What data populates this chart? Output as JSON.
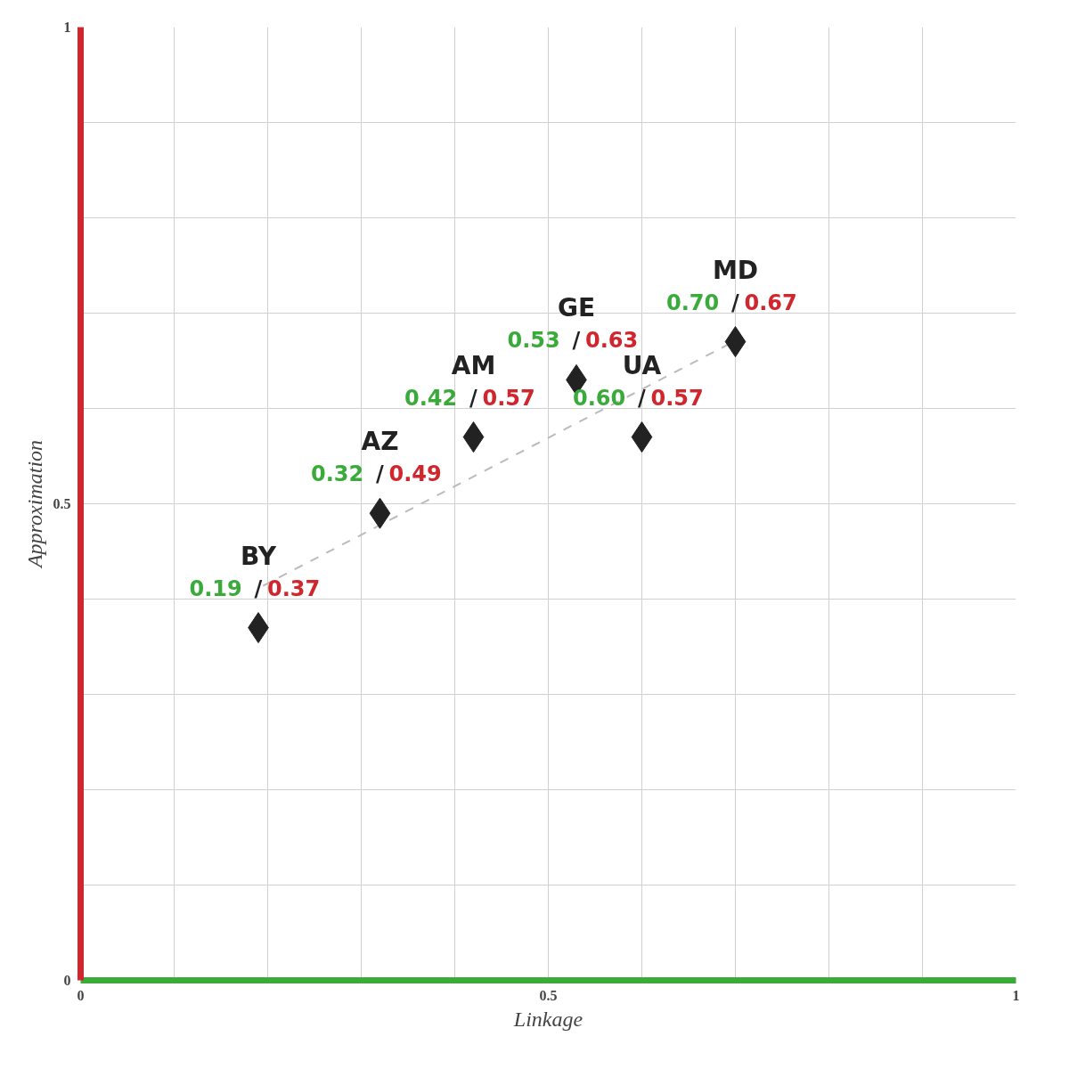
{
  "chart_data": {
    "type": "scatter",
    "xlabel": "Linkage",
    "ylabel": "Approximation",
    "xlim": [
      0,
      1
    ],
    "ylim": [
      0,
      1
    ],
    "xticks": [
      0,
      {
        "value": 0.1,
        "label": null
      },
      {
        "value": 0.2,
        "label": null
      },
      {
        "value": 0.3,
        "label": null
      },
      {
        "value": 0.4,
        "label": null
      },
      0.5,
      {
        "value": 0.6,
        "label": null
      },
      {
        "value": 0.7,
        "label": null
      },
      {
        "value": 0.8,
        "label": null
      },
      {
        "value": 0.9,
        "label": null
      },
      1
    ],
    "yticks": [
      0,
      {
        "value": 0.1,
        "label": null
      },
      {
        "value": 0.2,
        "label": null
      },
      {
        "value": 0.3,
        "label": null
      },
      {
        "value": 0.4,
        "label": null
      },
      0.5,
      {
        "value": 0.6,
        "label": null
      },
      {
        "value": 0.7,
        "label": null
      },
      {
        "value": 0.8,
        "label": null
      },
      {
        "value": 0.9,
        "label": null
      },
      1
    ],
    "grid": true,
    "marker": "diamond",
    "series": [
      {
        "type": "line",
        "color": "#bbbbbb",
        "line_style": "dashed",
        "marker": "none",
        "x": [
          0.195,
          0.7
        ],
        "values": [
          0.414,
          0.671
        ]
      },
      {
        "color": "#222222",
        "x": [
          0.19,
          0.32,
          0.42,
          0.53,
          0.6,
          0.7
        ],
        "values": [
          0.37,
          0.49,
          0.57,
          0.63,
          0.57,
          0.67
        ],
        "value_labels": [
          "0.19 / 0.37",
          "0.32 / 0.49",
          "0.42 / 0.57",
          "0.53 / 0.63",
          "0.60 / 0.57",
          "0.70 / 0.67"
        ]
      }
    ],
    "annotations": [
      {
        "text": "BY",
        "x": 0.19,
        "y": 0.37
      },
      {
        "text": "AZ",
        "x": 0.32,
        "y": 0.49
      },
      {
        "text": "AM",
        "x": 0.42,
        "y": 0.57
      },
      {
        "text": "GE",
        "x": 0.53,
        "y": 0.63
      },
      {
        "text": "UA",
        "x": 0.6,
        "y": 0.57
      },
      {
        "text": "MD",
        "x": 0.7,
        "y": 0.67
      }
    ]
  }
}
